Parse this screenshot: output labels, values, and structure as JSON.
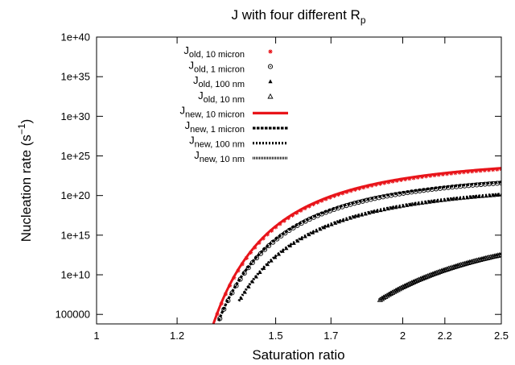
{
  "chart_data": {
    "type": "scatter",
    "title": {
      "base": "J with four different R",
      "sub": "p"
    },
    "xlabel": "Saturation ratio",
    "ylabel": {
      "base": "Nucleation rate (s",
      "sup": "−1",
      "end": ")"
    },
    "x_scale": "log",
    "y_scale": "log",
    "xlim": [
      1,
      2.5
    ],
    "ylim_log10": [
      3.8,
      40
    ],
    "x_ticks": [
      {
        "value": 1,
        "label": "1"
      },
      {
        "value": 1.2,
        "label": "1.2"
      },
      {
        "value": 1.5,
        "label": "1.5"
      },
      {
        "value": 1.7,
        "label": "1.7"
      },
      {
        "value": 2,
        "label": "2"
      },
      {
        "value": 2.2,
        "label": "2.2"
      },
      {
        "value": 2.5,
        "label": "2.5"
      }
    ],
    "y_ticks": [
      {
        "log10": 5,
        "label": "100000"
      },
      {
        "log10": 10,
        "label": "1e+10"
      },
      {
        "log10": 15,
        "label": "1e+15"
      },
      {
        "log10": 20,
        "label": "1e+20"
      },
      {
        "log10": 25,
        "label": "1e+25"
      },
      {
        "log10": 30,
        "label": "1e+30"
      },
      {
        "log10": 35,
        "label": "1e+35"
      },
      {
        "log10": 40,
        "label": "1e+40"
      }
    ],
    "grid": false,
    "legend_position": "top-left",
    "model": "log10 J = A - B / (ln S)^2",
    "series": [
      {
        "name": "J",
        "sub": "old, 10 micron",
        "style": "points",
        "marker": "star",
        "color": "#e8141a",
        "A": 25.12,
        "B": 1.5,
        "x_start": 1.302
      },
      {
        "name": "J",
        "sub": "old, 1 micron",
        "style": "points",
        "marker": "circle",
        "color": "#000000",
        "A": 23.33,
        "B": 1.47,
        "x_start": 1.322
      },
      {
        "name": "J",
        "sub": "old, 100 nm",
        "style": "points",
        "marker": "triangle-filled",
        "color": "#000000",
        "A": 22.0,
        "B": 1.6,
        "x_start": 1.387
      },
      {
        "name": "J",
        "sub": "old, 10 nm",
        "style": "points",
        "marker": "triangle-open",
        "color": "#000000",
        "A": 18.0,
        "B": 4.6,
        "x_start": 1.9
      },
      {
        "name": "J",
        "sub": "new, 10 micron",
        "style": "line",
        "dash": "solid",
        "color": "#e8141a",
        "A": 25.25,
        "B": 1.5,
        "x_start": 1.295
      },
      {
        "name": "J",
        "sub": "new, 1 micron",
        "style": "line",
        "dash": "dashed",
        "color": "#000000",
        "A": 23.45,
        "B": 1.47,
        "x_start": 1.318
      },
      {
        "name": "J",
        "sub": "new, 100 nm",
        "style": "line",
        "dash": "dotted",
        "color": "#000000",
        "A": 22.1,
        "B": 1.6,
        "x_start": 1.38
      },
      {
        "name": "J",
        "sub": "new, 10 nm",
        "style": "line",
        "dash": "fine",
        "color": "#000000",
        "A": 18.1,
        "B": 4.6,
        "x_start": 1.895
      }
    ]
  }
}
